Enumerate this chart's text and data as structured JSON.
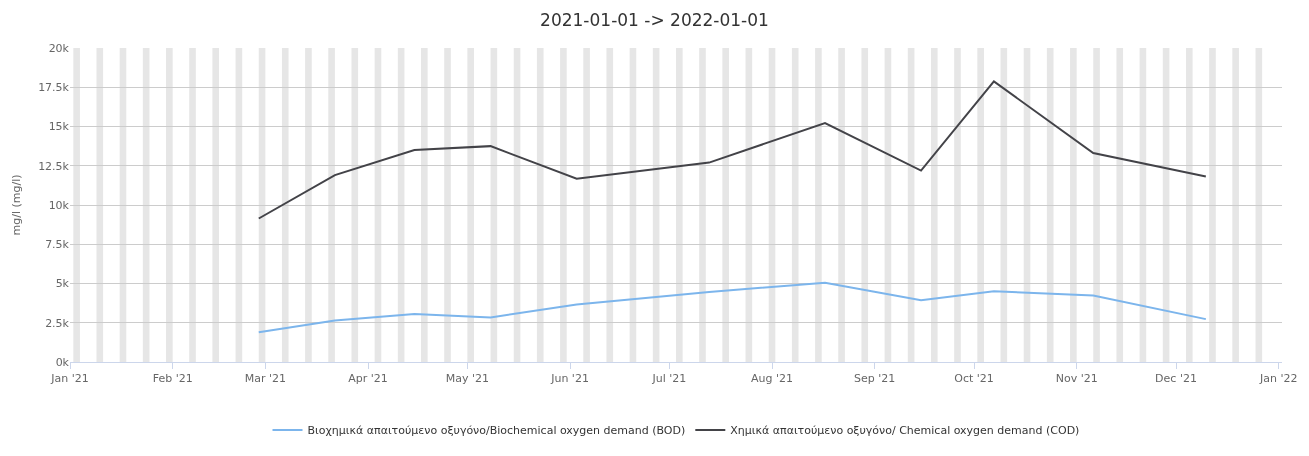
{
  "chart_data": {
    "type": "line",
    "title": "2021-01-01 -> 2022-01-01",
    "ylabel": "mg/l (mg/l)",
    "x": [
      "2021-02-27",
      "2021-03-22",
      "2021-04-15",
      "2021-05-08",
      "2021-06-03",
      "2021-07-13",
      "2021-08-17",
      "2021-09-15",
      "2021-10-07",
      "2021-11-06",
      "2021-12-10"
    ],
    "series": [
      {
        "name": "Βιοχημικά απαιτούμενο οξυγόνο/Biochemical oxygen demand (BOD)",
        "color": "#7cb5ec",
        "values": [
          1890,
          2650,
          3050,
          2840,
          3660,
          4460,
          5050,
          3940,
          4510,
          4230,
          2730
        ]
      },
      {
        "name": "Χημικά απαιτούμενο οξυγόνο/ Chemical oxygen demand (COD)",
        "color": "#434348",
        "values": [
          9140,
          11900,
          13500,
          13750,
          11670,
          12700,
          15220,
          12190,
          17870,
          13310,
          11810
        ]
      }
    ],
    "xlim": [
      "2021-01-01",
      "2022-01-02"
    ],
    "xticks": [
      {
        "value": "2021-01-01",
        "label": "Jan '21"
      },
      {
        "value": "2021-02-01",
        "label": "Feb '21"
      },
      {
        "value": "2021-03-01",
        "label": "Mar '21"
      },
      {
        "value": "2021-04-01",
        "label": "Apr '21"
      },
      {
        "value": "2021-05-01",
        "label": "May '21"
      },
      {
        "value": "2021-06-01",
        "label": "Jun '21"
      },
      {
        "value": "2021-07-01",
        "label": "Jul '21"
      },
      {
        "value": "2021-08-01",
        "label": "Aug '21"
      },
      {
        "value": "2021-09-01",
        "label": "Sep '21"
      },
      {
        "value": "2021-10-01",
        "label": "Oct '21"
      },
      {
        "value": "2021-11-01",
        "label": "Nov '21"
      },
      {
        "value": "2021-12-01",
        "label": "Dec '21"
      },
      {
        "value": "2022-01-01",
        "label": "Jan '22"
      }
    ],
    "ylim": [
      0,
      20000
    ],
    "yticks": [
      {
        "value": 0,
        "label": "0k"
      },
      {
        "value": 2500,
        "label": "2.5k"
      },
      {
        "value": 5000,
        "label": "5k"
      },
      {
        "value": 7500,
        "label": "7.5k"
      },
      {
        "value": 10000,
        "label": "10k"
      },
      {
        "value": 12500,
        "label": "12.5k"
      },
      {
        "value": 15000,
        "label": "15k"
      },
      {
        "value": 17500,
        "label": "17.5k"
      },
      {
        "value": 20000,
        "label": "20k"
      }
    ],
    "bands": [
      {
        "axis": "x",
        "from": "2021-01-02",
        "to": "2021-01-04",
        "color": "#e6e6e6"
      },
      {
        "axis": "x",
        "from": "2021-01-09",
        "to": "2021-01-11",
        "color": "#e6e6e6"
      },
      {
        "axis": "x",
        "from": "2021-01-16",
        "to": "2021-01-18",
        "color": "#e6e6e6"
      },
      {
        "axis": "x",
        "from": "2021-01-23",
        "to": "2021-01-25",
        "color": "#e6e6e6"
      },
      {
        "axis": "x",
        "from": "2021-01-30",
        "to": "2021-02-01",
        "color": "#e6e6e6"
      },
      {
        "axis": "x",
        "from": "2021-02-06",
        "to": "2021-02-08",
        "color": "#e6e6e6"
      },
      {
        "axis": "x",
        "from": "2021-02-13",
        "to": "2021-02-15",
        "color": "#e6e6e6"
      },
      {
        "axis": "x",
        "from": "2021-02-20",
        "to": "2021-02-22",
        "color": "#e6e6e6"
      },
      {
        "axis": "x",
        "from": "2021-02-27",
        "to": "2021-03-01",
        "color": "#e6e6e6"
      },
      {
        "axis": "x",
        "from": "2021-03-06",
        "to": "2021-03-08",
        "color": "#e6e6e6"
      },
      {
        "axis": "x",
        "from": "2021-03-13",
        "to": "2021-03-15",
        "color": "#e6e6e6"
      },
      {
        "axis": "x",
        "from": "2021-03-20",
        "to": "2021-03-22",
        "color": "#e6e6e6"
      },
      {
        "axis": "x",
        "from": "2021-03-27",
        "to": "2021-03-29",
        "color": "#e6e6e6"
      },
      {
        "axis": "x",
        "from": "2021-04-03",
        "to": "2021-04-05",
        "color": "#e6e6e6"
      },
      {
        "axis": "x",
        "from": "2021-04-10",
        "to": "2021-04-12",
        "color": "#e6e6e6"
      },
      {
        "axis": "x",
        "from": "2021-04-17",
        "to": "2021-04-19",
        "color": "#e6e6e6"
      },
      {
        "axis": "x",
        "from": "2021-04-24",
        "to": "2021-04-26",
        "color": "#e6e6e6"
      },
      {
        "axis": "x",
        "from": "2021-05-01",
        "to": "2021-05-03",
        "color": "#e6e6e6"
      },
      {
        "axis": "x",
        "from": "2021-05-08",
        "to": "2021-05-10",
        "color": "#e6e6e6"
      },
      {
        "axis": "x",
        "from": "2021-05-15",
        "to": "2021-05-17",
        "color": "#e6e6e6"
      },
      {
        "axis": "x",
        "from": "2021-05-22",
        "to": "2021-05-24",
        "color": "#e6e6e6"
      },
      {
        "axis": "x",
        "from": "2021-05-29",
        "to": "2021-05-31",
        "color": "#e6e6e6"
      },
      {
        "axis": "x",
        "from": "2021-06-05",
        "to": "2021-06-07",
        "color": "#e6e6e6"
      },
      {
        "axis": "x",
        "from": "2021-06-12",
        "to": "2021-06-14",
        "color": "#e6e6e6"
      },
      {
        "axis": "x",
        "from": "2021-06-19",
        "to": "2021-06-21",
        "color": "#e6e6e6"
      },
      {
        "axis": "x",
        "from": "2021-06-26",
        "to": "2021-06-28",
        "color": "#e6e6e6"
      },
      {
        "axis": "x",
        "from": "2021-07-03",
        "to": "2021-07-05",
        "color": "#e6e6e6"
      },
      {
        "axis": "x",
        "from": "2021-07-10",
        "to": "2021-07-12",
        "color": "#e6e6e6"
      },
      {
        "axis": "x",
        "from": "2021-07-17",
        "to": "2021-07-19",
        "color": "#e6e6e6"
      },
      {
        "axis": "x",
        "from": "2021-07-24",
        "to": "2021-07-26",
        "color": "#e6e6e6"
      },
      {
        "axis": "x",
        "from": "2021-07-31",
        "to": "2021-08-02",
        "color": "#e6e6e6"
      },
      {
        "axis": "x",
        "from": "2021-08-07",
        "to": "2021-08-09",
        "color": "#e6e6e6"
      },
      {
        "axis": "x",
        "from": "2021-08-14",
        "to": "2021-08-16",
        "color": "#e6e6e6"
      },
      {
        "axis": "x",
        "from": "2021-08-21",
        "to": "2021-08-23",
        "color": "#e6e6e6"
      },
      {
        "axis": "x",
        "from": "2021-08-28",
        "to": "2021-08-30",
        "color": "#e6e6e6"
      },
      {
        "axis": "x",
        "from": "2021-09-04",
        "to": "2021-09-06",
        "color": "#e6e6e6"
      },
      {
        "axis": "x",
        "from": "2021-09-11",
        "to": "2021-09-13",
        "color": "#e6e6e6"
      },
      {
        "axis": "x",
        "from": "2021-09-18",
        "to": "2021-09-20",
        "color": "#e6e6e6"
      },
      {
        "axis": "x",
        "from": "2021-09-25",
        "to": "2021-09-27",
        "color": "#e6e6e6"
      },
      {
        "axis": "x",
        "from": "2021-10-02",
        "to": "2021-10-04",
        "color": "#e6e6e6"
      },
      {
        "axis": "x",
        "from": "2021-10-09",
        "to": "2021-10-11",
        "color": "#e6e6e6"
      },
      {
        "axis": "x",
        "from": "2021-10-16",
        "to": "2021-10-18",
        "color": "#e6e6e6"
      },
      {
        "axis": "x",
        "from": "2021-10-23",
        "to": "2021-10-25",
        "color": "#e6e6e6"
      },
      {
        "axis": "x",
        "from": "2021-10-30",
        "to": "2021-11-01",
        "color": "#e6e6e6"
      },
      {
        "axis": "x",
        "from": "2021-11-06",
        "to": "2021-11-08",
        "color": "#e6e6e6"
      },
      {
        "axis": "x",
        "from": "2021-11-13",
        "to": "2021-11-15",
        "color": "#e6e6e6"
      },
      {
        "axis": "x",
        "from": "2021-11-20",
        "to": "2021-11-22",
        "color": "#e6e6e6"
      },
      {
        "axis": "x",
        "from": "2021-11-27",
        "to": "2021-11-29",
        "color": "#e6e6e6"
      },
      {
        "axis": "x",
        "from": "2021-12-04",
        "to": "2021-12-06",
        "color": "#e6e6e6"
      },
      {
        "axis": "x",
        "from": "2021-12-11",
        "to": "2021-12-13",
        "color": "#e6e6e6"
      },
      {
        "axis": "x",
        "from": "2021-12-18",
        "to": "2021-12-20",
        "color": "#e6e6e6"
      },
      {
        "axis": "x",
        "from": "2021-12-25",
        "to": "2021-12-27",
        "color": "#e6e6e6"
      }
    ],
    "grid": "y",
    "legend": "bottom",
    "marker": "none",
    "line_style": "solid"
  }
}
